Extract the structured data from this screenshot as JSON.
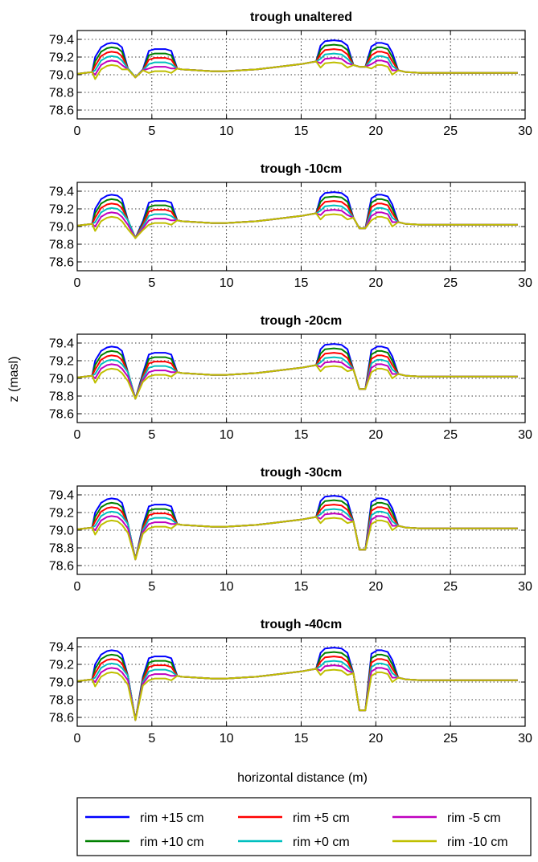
{
  "chart_data": {
    "type": "line",
    "ylabel": "z (masl)",
    "xlabel": "horizontal distance (m)",
    "xlim": [
      0,
      30
    ],
    "ylim": [
      78.5,
      79.5
    ],
    "xticks": [
      0,
      5,
      10,
      15,
      20,
      25,
      30
    ],
    "yticks": [
      79.4,
      79.2,
      79.0,
      78.8,
      78.6
    ],
    "ytick_labels": [
      "79.4",
      "79.2",
      "79.0",
      "78.8",
      "78.6"
    ],
    "xtick_labels": [
      "0",
      "5",
      "10",
      "15",
      "20",
      "25",
      "30"
    ],
    "grid": true,
    "legend_position": "bottom",
    "legend": [
      {
        "name": "rim +15 cm",
        "color": "#0000ff"
      },
      {
        "name": "rim +5 cm",
        "color": "#ff0000"
      },
      {
        "name": "rim -5 cm",
        "color": "#bf00bf"
      },
      {
        "name": "rim +10 cm",
        "color": "#008000"
      },
      {
        "name": "rim +0 cm",
        "color": "#00bfbf"
      },
      {
        "name": "rim -10 cm",
        "color": "#bfbf00"
      }
    ],
    "panels": [
      {
        "title": "trough unaltered",
        "trough_bottom_1": 78.97,
        "trough_bottom_2": 79.09
      },
      {
        "title": "trough -10cm",
        "trough_bottom_1": 78.87,
        "trough_bottom_2": 78.98
      },
      {
        "title": "trough -20cm",
        "trough_bottom_1": 78.77,
        "trough_bottom_2": 78.88
      },
      {
        "title": "trough -30cm",
        "trough_bottom_1": 78.67,
        "trough_bottom_2": 78.78
      },
      {
        "title": "trough -40cm",
        "trough_bottom_1": 78.57,
        "trough_bottom_2": 78.68
      }
    ],
    "rim_offsets_m": [
      0.15,
      0.1,
      0.05,
      0.0,
      -0.05,
      -0.1
    ],
    "rim_base_profile": {
      "x": [
        0,
        1,
        1.2,
        1.6,
        2.0,
        2.3,
        2.7,
        3.0,
        3.4,
        3.9,
        4.4,
        4.8,
        5.2,
        5.5,
        5.9,
        6.3,
        6.7,
        7,
        8,
        9,
        10,
        11,
        12,
        13,
        14,
        15,
        16,
        16.3,
        16.6,
        17.2,
        17.7,
        18.1,
        18.5,
        18.9,
        19.3,
        19.7,
        20.1,
        20.4,
        20.8,
        21.1,
        21.5,
        22,
        23,
        24,
        25,
        26,
        27,
        28,
        29,
        29.5
      ],
      "y": [
        79.01,
        79.03,
        79.05,
        79.16,
        79.2,
        79.21,
        79.2,
        79.16,
        79.07,
        79.0,
        79.05,
        79.12,
        79.14,
        79.14,
        79.14,
        79.12,
        79.07,
        79.06,
        79.05,
        79.04,
        79.04,
        79.05,
        79.06,
        79.08,
        79.1,
        79.12,
        79.15,
        79.18,
        79.23,
        79.24,
        79.23,
        79.18,
        79.1,
        79.08,
        79.1,
        79.17,
        79.21,
        79.21,
        79.19,
        79.1,
        79.05,
        79.03,
        79.02,
        79.02,
        79.02,
        79.02,
        79.02,
        79.02,
        79.02,
        79.02
      ]
    }
  }
}
